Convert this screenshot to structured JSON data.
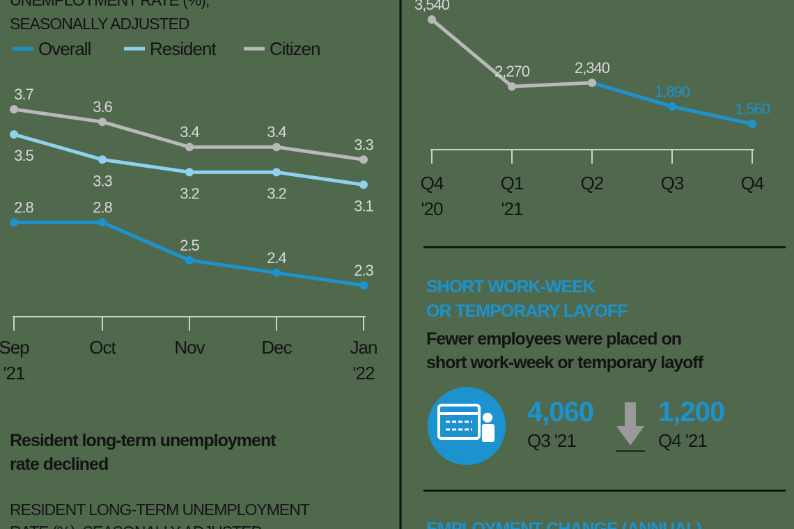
{
  "chart_data": [
    {
      "type": "line",
      "title_lines": [
        "UNEMPLOYMENT RATE (%),",
        "SEASONALLY ADJUSTED"
      ],
      "categories": [
        "Sep",
        "Oct",
        "Nov",
        "Dec",
        "Jan"
      ],
      "category_years": [
        "'21",
        null,
        null,
        null,
        "'22"
      ],
      "series": [
        {
          "name": "Overall",
          "color": "#1c93cf",
          "label_position": "above",
          "values": [
            2.8,
            2.8,
            2.5,
            2.4,
            2.3
          ]
        },
        {
          "name": "Resident",
          "color": "#8fd2ef",
          "label_position": "below",
          "values": [
            3.5,
            3.3,
            3.2,
            3.2,
            3.1
          ]
        },
        {
          "name": "Citizen",
          "color": "#b9b9b9",
          "label_position": "above",
          "values": [
            3.7,
            3.6,
            3.4,
            3.4,
            3.3
          ]
        }
      ]
    },
    {
      "type": "line",
      "categories": [
        "Q4",
        "Q1",
        "Q2",
        "Q3",
        "Q4"
      ],
      "category_years": [
        "'20",
        "'21",
        null,
        null,
        null
      ],
      "series": [
        {
          "point_colors": [
            "#b9b9b9",
            "#b9b9b9",
            "#b9b9b9",
            "#1c93cf",
            "#1c93cf"
          ],
          "values": [
            3540,
            2270,
            2340,
            1890,
            1560
          ],
          "value_labels": [
            "3,540",
            "2,270",
            "2,340",
            "1,890",
            "1,560"
          ]
        }
      ]
    }
  ],
  "long_term": {
    "lead_lines": [
      "Resident long-term unemployment",
      "rate declined"
    ],
    "title_lines": [
      "RESIDENT LONG-TERM UNEMPLOYMENT",
      "RATE (%), SEASONALLY ADJUSTED"
    ]
  },
  "layoff": {
    "title_lines": [
      "SHORT WORK-WEEK",
      "OR TEMPORARY LAYOFF"
    ],
    "lead_lines": [
      "Fewer employees were placed on",
      "short work-week or temporary layoff"
    ],
    "from": {
      "value": "4,060",
      "period": "Q3 '21"
    },
    "to": {
      "value": "1,200",
      "period": "Q4 '21"
    }
  },
  "employment": {
    "title": "EMPLOYMENT CHANGE (ANNUAL)"
  }
}
